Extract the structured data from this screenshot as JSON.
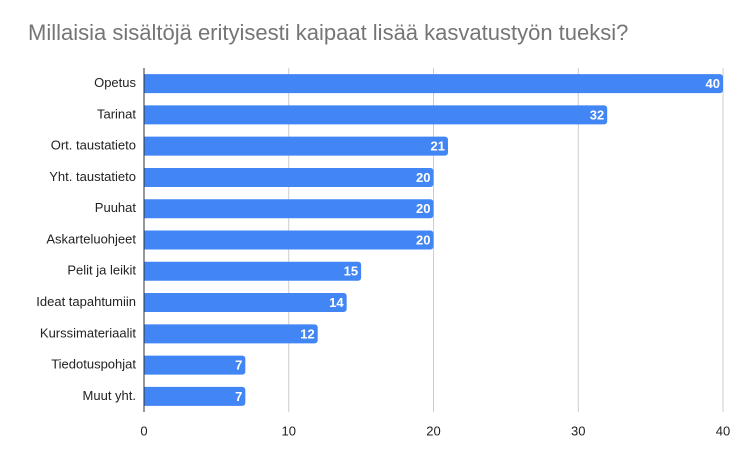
{
  "chart_data": {
    "type": "bar",
    "orientation": "horizontal",
    "title": "Millaisia sisältöjä erityisesti kaipaat lisää kasvatustyön tueksi?",
    "categories": [
      "Opetus",
      "Tarinat",
      "Ort. taustatieto",
      "Yht. taustatieto",
      "Puuhat",
      "Askarteluohjeet",
      "Pelit ja leikit",
      "Ideat tapahtumiin",
      "Kurssimateriaalit",
      "Tiedotuspohjat",
      "Muut yht."
    ],
    "values": [
      40,
      32,
      21,
      20,
      20,
      20,
      15,
      14,
      12,
      7,
      7
    ],
    "color": "#4285f4",
    "xlim": [
      0,
      40
    ],
    "xticks": [
      0,
      10,
      20,
      30,
      40
    ],
    "grid": true
  }
}
